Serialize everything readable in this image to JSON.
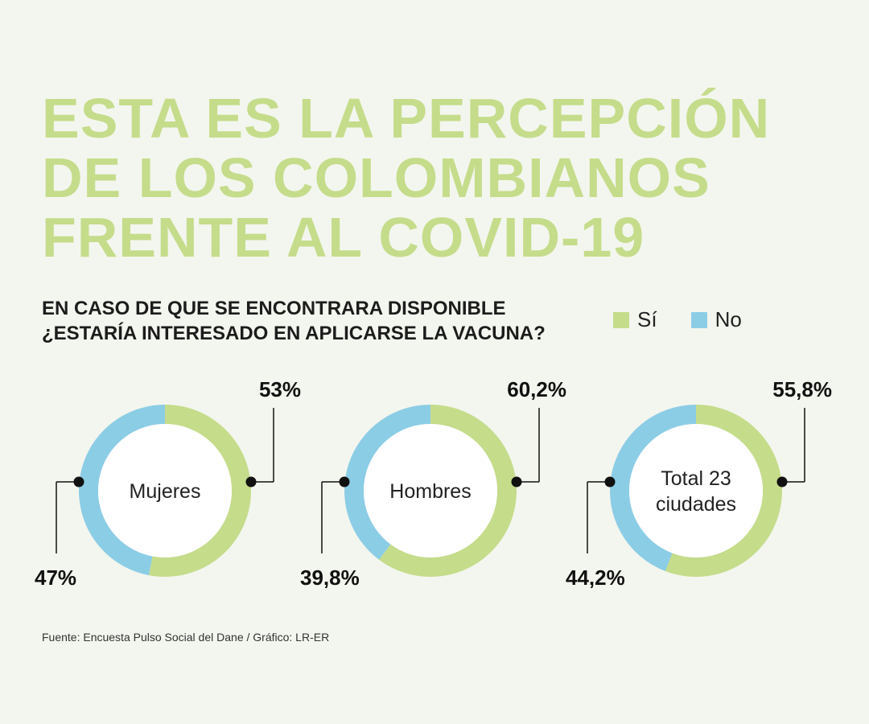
{
  "headline": {
    "lines": [
      "ESTA ES LA PERCEPCIÓN",
      "DE LOS COLOMBIANOS",
      "FRENTE AL COVID-19"
    ]
  },
  "question": {
    "lines": [
      "EN CASO DE QUE SE ENCONTRARA DISPONIBLE",
      "¿ESTARÍA INTERESADO EN APLICARSE LA VACUNA?"
    ]
  },
  "legend": {
    "yes_label": "Sí",
    "no_label": "No"
  },
  "colors": {
    "yes": "#c5dc8b",
    "no": "#8ccde6",
    "title": "#c5dc8b",
    "background": "#f3f6ee"
  },
  "chart_data": [
    {
      "type": "pie",
      "center_label": [
        "Mujeres"
      ],
      "slices": [
        {
          "name": "Sí",
          "value": 53,
          "label": "53%"
        },
        {
          "name": "No",
          "value": 47,
          "label": "47%"
        }
      ]
    },
    {
      "type": "pie",
      "center_label": [
        "Hombres"
      ],
      "slices": [
        {
          "name": "Sí",
          "value": 60.2,
          "label": "60,2%"
        },
        {
          "name": "No",
          "value": 39.8,
          "label": "39,8%"
        }
      ]
    },
    {
      "type": "pie",
      "center_label": [
        "Total 23",
        "ciudades"
      ],
      "slices": [
        {
          "name": "Sí",
          "value": 55.8,
          "label": "55,8%"
        },
        {
          "name": "No",
          "value": 44.2,
          "label": "44,2%"
        }
      ]
    }
  ],
  "source": "Fuente: Encuesta Pulso Social del Dane / Gráfico: LR-ER"
}
